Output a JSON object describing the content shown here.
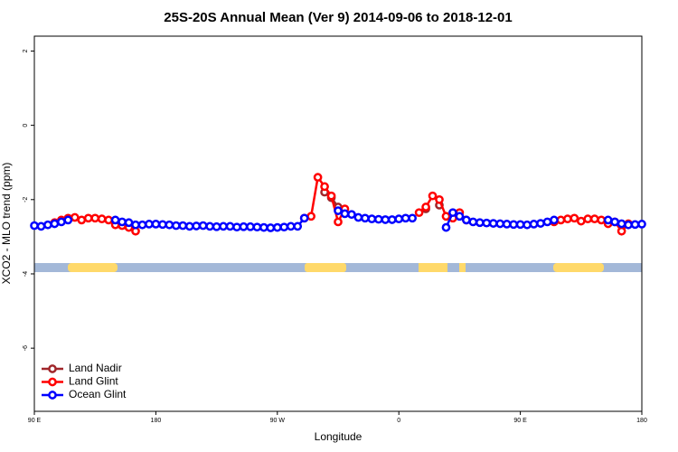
{
  "chart_data": {
    "type": "line",
    "title": "25S-20S Annual Mean (Ver 9)   2014-09-06 to 2018-12-01",
    "xlabel": "Longitude",
    "ylabel": "XCO2 - MLO trend (ppm)",
    "x": [
      90,
      95,
      100,
      105,
      110,
      115,
      120,
      125,
      130,
      135,
      140,
      145,
      150,
      155,
      160,
      165,
      170,
      175,
      180,
      185,
      190,
      195,
      200,
      205,
      210,
      215,
      220,
      225,
      230,
      235,
      240,
      245,
      250,
      255,
      260,
      265,
      270,
      275,
      280,
      285,
      290,
      295,
      300,
      305,
      310,
      315,
      320,
      325,
      330,
      335,
      340,
      345,
      350,
      355,
      360,
      365,
      370,
      375,
      380,
      385,
      390,
      395,
      400,
      405,
      410,
      415,
      420,
      425,
      430,
      435,
      440,
      445,
      450,
      455,
      460,
      465,
      470,
      475,
      480,
      485,
      490,
      495,
      500,
      505,
      510,
      515,
      520,
      525,
      530,
      535,
      540
    ],
    "xlim": [
      90,
      540
    ],
    "xticks": [
      {
        "value": 90,
        "label": "90 E"
      },
      {
        "value": 180,
        "label": "180"
      },
      {
        "value": 270,
        "label": "90 W"
      },
      {
        "value": 360,
        "label": "0"
      },
      {
        "value": 450,
        "label": "90 E"
      },
      {
        "value": 540,
        "label": "180"
      }
    ],
    "ylim": [
      -7.7,
      2.4
    ],
    "yticks": [
      2,
      0,
      -2,
      -4,
      -6
    ],
    "legend": "bottom-left",
    "series": [
      {
        "name": "Land Nadir",
        "color": "#a0262a",
        "values": [
          null,
          null,
          null,
          null,
          null,
          null,
          null,
          null,
          null,
          null,
          null,
          null,
          null,
          null,
          null,
          null,
          null,
          null,
          null,
          null,
          null,
          null,
          null,
          null,
          null,
          null,
          null,
          null,
          null,
          null,
          null,
          null,
          null,
          null,
          null,
          null,
          null,
          null,
          null,
          null,
          null,
          null,
          null,
          -1.8,
          -1.95,
          -2.2,
          null,
          null,
          null,
          null,
          null,
          null,
          null,
          null,
          null,
          null,
          null,
          null,
          -2.25,
          null,
          -2.15,
          null,
          null,
          null,
          null,
          null,
          null,
          null,
          null,
          null,
          null,
          null,
          null,
          null,
          null,
          null,
          null,
          null,
          null,
          null,
          null,
          null,
          null,
          null,
          null,
          null,
          null,
          null,
          null,
          null,
          null
        ]
      },
      {
        "name": "Land Glint",
        "color": "#ff0000",
        "values": [
          null,
          null,
          null,
          -2.62,
          -2.55,
          -2.5,
          -2.48,
          -2.55,
          -2.5,
          -2.5,
          -2.52,
          -2.55,
          -2.68,
          -2.7,
          -2.75,
          -2.85,
          null,
          null,
          null,
          null,
          null,
          null,
          null,
          null,
          null,
          null,
          null,
          null,
          null,
          null,
          null,
          null,
          null,
          null,
          null,
          null,
          null,
          null,
          null,
          null,
          -2.5,
          -2.45,
          -1.4,
          -1.65,
          -1.9,
          -2.6,
          -2.25,
          null,
          null,
          null,
          null,
          null,
          null,
          null,
          null,
          null,
          null,
          -2.35,
          -2.2,
          -1.9,
          -2.0,
          -2.45,
          -2.5,
          -2.35,
          -2.55,
          null,
          null,
          null,
          null,
          null,
          null,
          null,
          null,
          null,
          null,
          null,
          null,
          -2.6,
          -2.55,
          -2.52,
          -2.5,
          -2.58,
          -2.52,
          -2.52,
          -2.55,
          -2.65,
          -2.6,
          -2.85,
          -2.65,
          null,
          null
        ]
      },
      {
        "name": "Ocean Glint",
        "color": "#0000ff",
        "values": [
          -2.7,
          -2.72,
          -2.68,
          -2.65,
          -2.6,
          -2.55,
          null,
          null,
          null,
          null,
          null,
          null,
          -2.55,
          -2.6,
          -2.62,
          -2.68,
          -2.68,
          -2.66,
          -2.66,
          -2.67,
          -2.68,
          -2.7,
          -2.7,
          -2.72,
          -2.71,
          -2.7,
          -2.72,
          -2.73,
          -2.72,
          -2.72,
          -2.74,
          -2.73,
          -2.73,
          -2.74,
          -2.75,
          -2.76,
          -2.75,
          -2.74,
          -2.72,
          -2.72,
          -2.5,
          null,
          null,
          null,
          null,
          -2.3,
          -2.38,
          -2.4,
          -2.48,
          -2.5,
          -2.52,
          -2.53,
          -2.54,
          -2.54,
          -2.52,
          -2.5,
          -2.5,
          null,
          null,
          null,
          null,
          -2.75,
          -2.35,
          -2.45,
          -2.55,
          -2.6,
          -2.62,
          -2.63,
          -2.64,
          -2.65,
          -2.66,
          -2.67,
          -2.67,
          -2.68,
          -2.66,
          -2.64,
          -2.6,
          -2.55,
          null,
          null,
          null,
          null,
          null,
          null,
          null,
          -2.55,
          -2.6,
          -2.65,
          -2.68,
          -2.67,
          -2.66
        ]
      }
    ]
  }
}
